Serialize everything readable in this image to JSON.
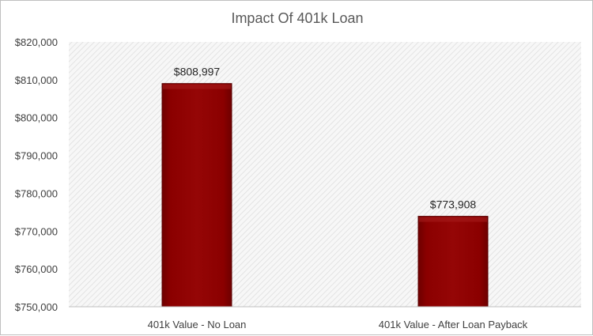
{
  "chart_data": {
    "type": "bar",
    "title": "Impact Of 401k Loan",
    "categories": [
      "401k Value - No Loan",
      "401k Value - After Loan Payback"
    ],
    "values": [
      808997,
      773908
    ],
    "data_labels": [
      "$808,997",
      "$773,908"
    ],
    "xlabel": "",
    "ylabel": "",
    "ylim": [
      750000,
      820000
    ],
    "yticks": [
      750000,
      760000,
      770000,
      780000,
      790000,
      800000,
      810000,
      820000
    ],
    "ytick_labels": [
      "$750,000",
      "$760,000",
      "$770,000",
      "$780,000",
      "$790,000",
      "$800,000",
      "$810,000",
      "$820,000"
    ],
    "grid": false,
    "legend": "none",
    "bar_color": "#8b0000",
    "plot_background": "diagonal-hatch"
  }
}
